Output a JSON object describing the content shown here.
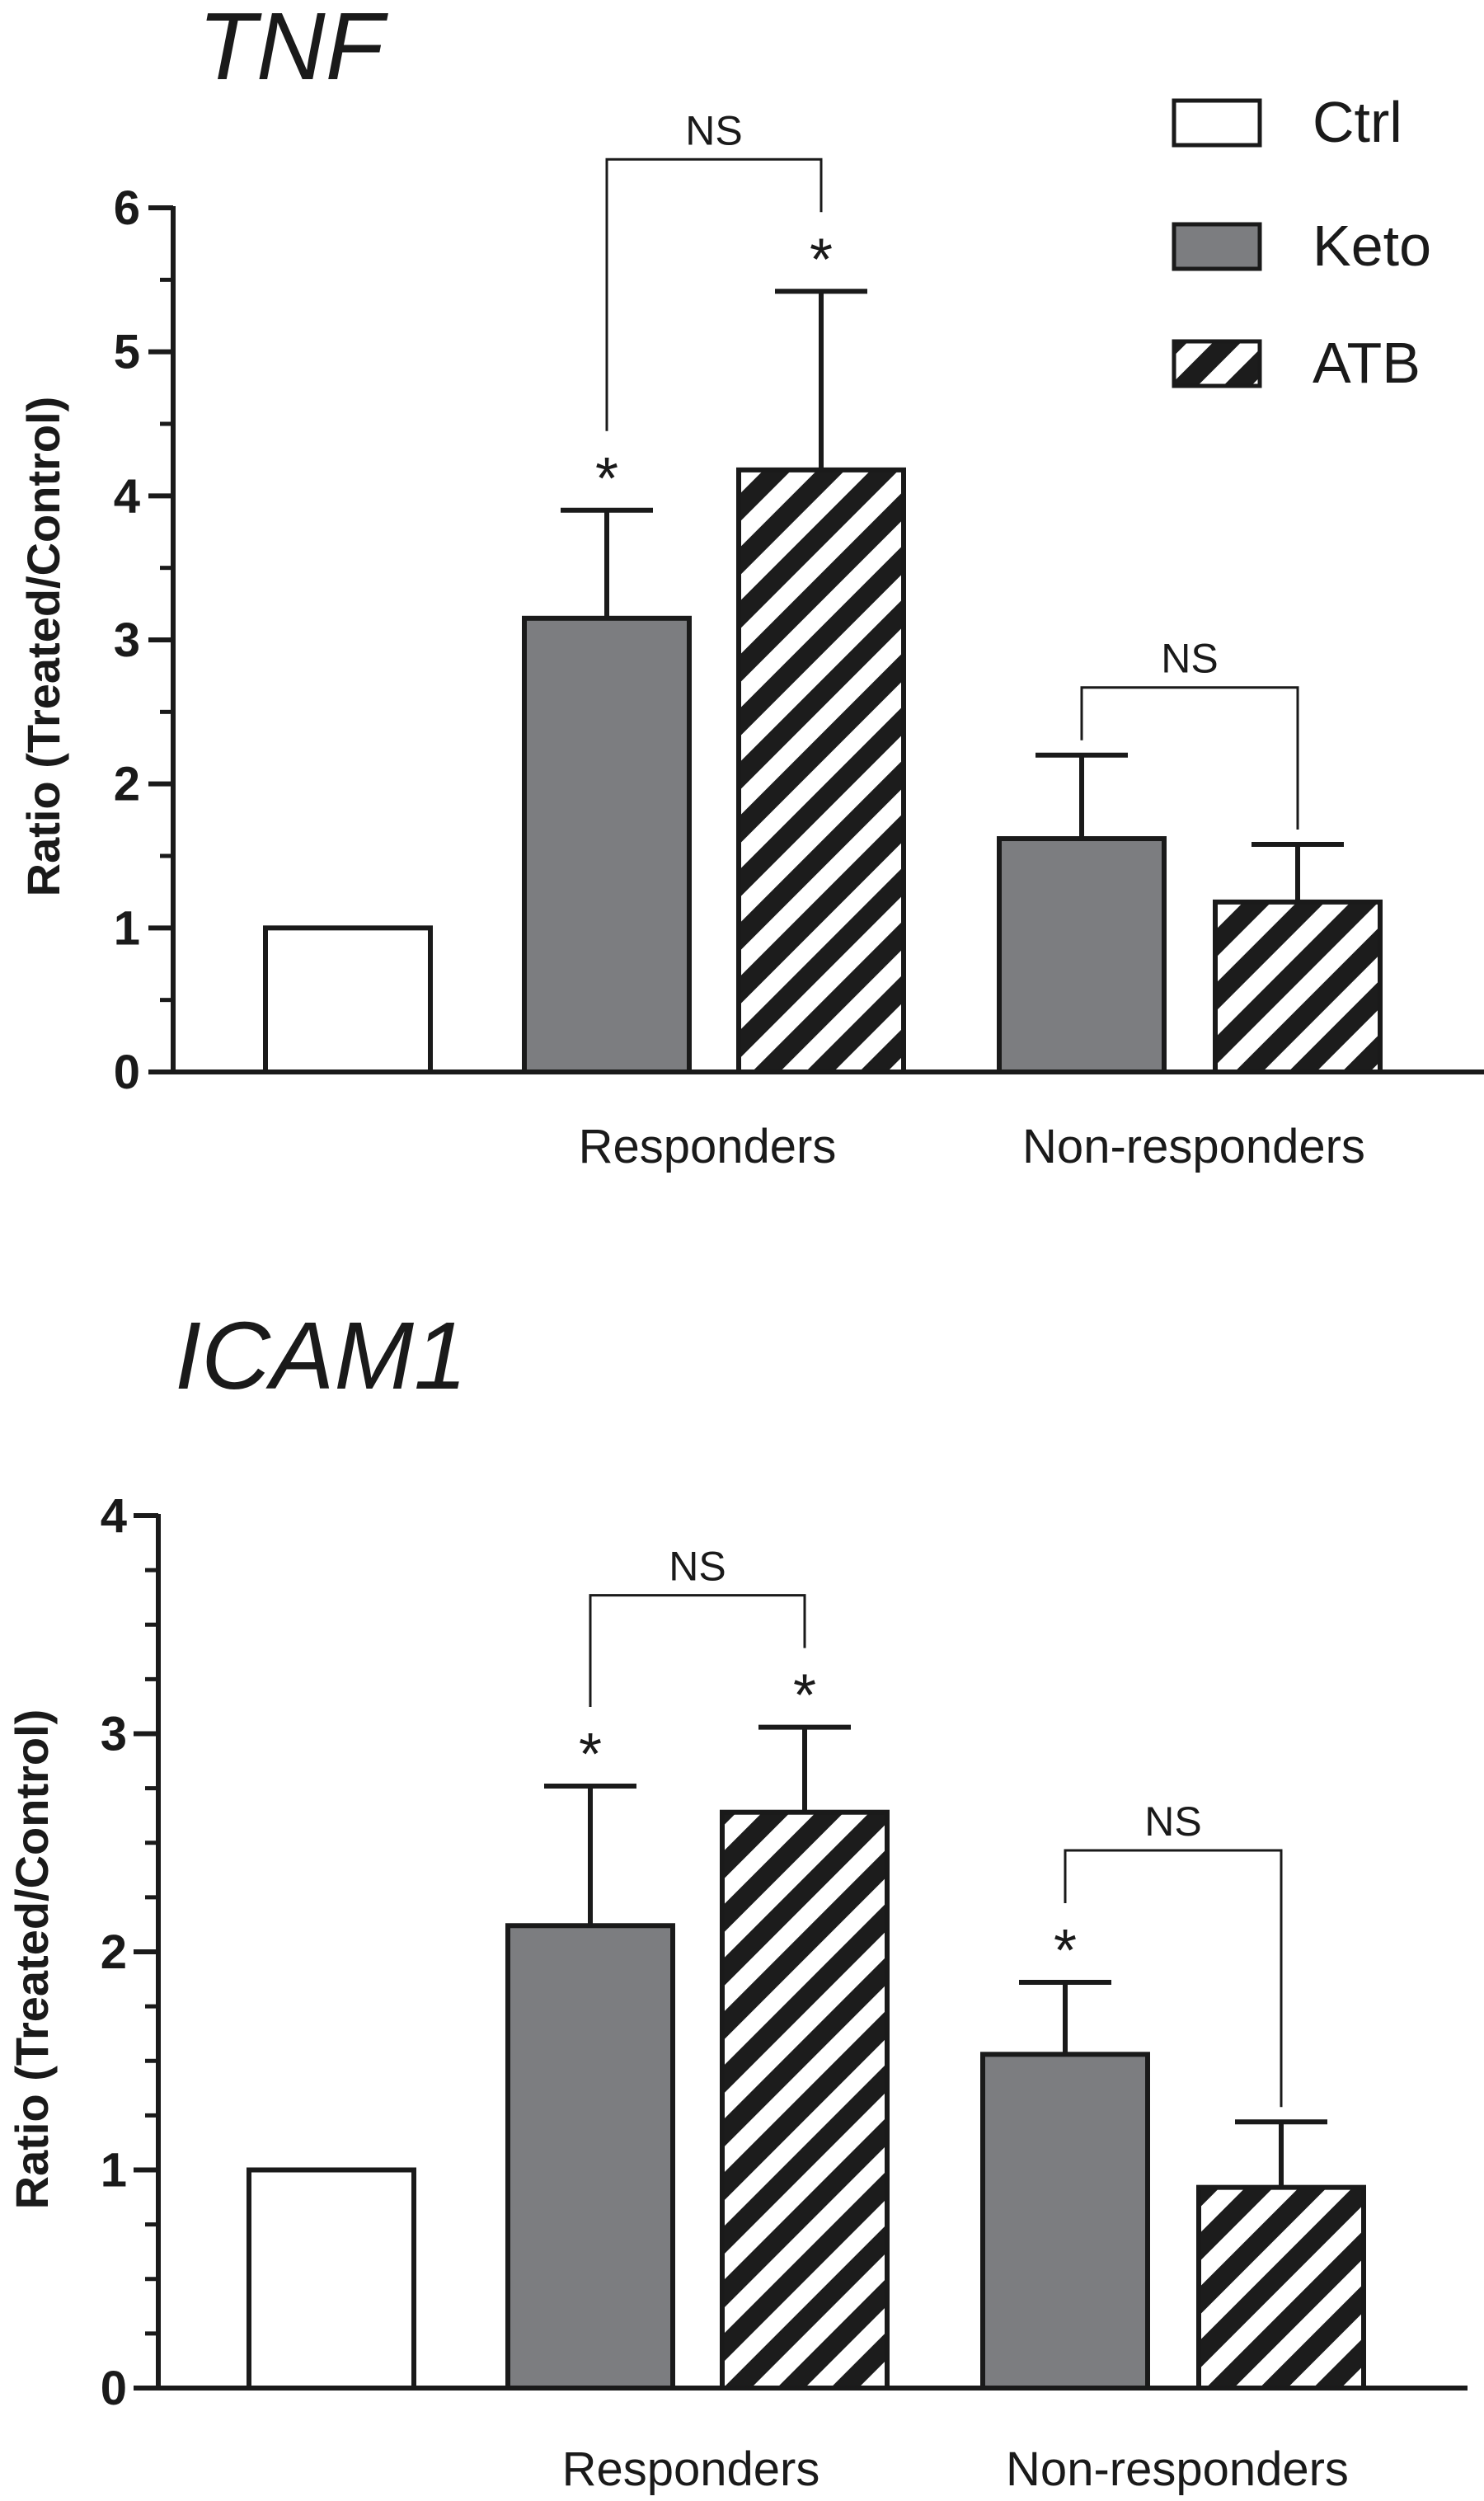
{
  "colors": {
    "ctrl_fill": "#ffffff",
    "keto_fill": "#7c7d80",
    "atb_stripe": "#1c1c1c",
    "axis": "#1a1a1a"
  },
  "legend": {
    "placement": "top-right",
    "items": [
      {
        "key": "ctrl",
        "label": "Ctrl"
      },
      {
        "key": "keto",
        "label": "Keto"
      },
      {
        "key": "atb",
        "label": "ATB"
      }
    ]
  },
  "chart_data": [
    {
      "type": "bar",
      "title": "TNF",
      "ylabel": "Ratio (Treated/Control)",
      "ylim": [
        0,
        6
      ],
      "yticks": [
        "0",
        "1",
        "2",
        "3",
        "4",
        "5",
        "6"
      ],
      "categories": [
        "",
        "Responders",
        "Non-responders"
      ],
      "bars": [
        {
          "group": "",
          "series": "ctrl",
          "value": 1.0,
          "error": 0,
          "star": ""
        },
        {
          "group": "Responders",
          "series": "keto",
          "value": 3.15,
          "error": 0.75,
          "star": "*"
        },
        {
          "group": "Responders",
          "series": "atb",
          "value": 4.18,
          "error": 1.24,
          "star": "*"
        },
        {
          "group": "Non-responders",
          "series": "keto",
          "value": 1.62,
          "error": 0.58,
          "star": ""
        },
        {
          "group": "Non-responders",
          "series": "atb",
          "value": 1.18,
          "error": 0.4,
          "star": ""
        }
      ],
      "comparisons": [
        {
          "from": 1,
          "to": 2,
          "label": "NS"
        },
        {
          "from": 3,
          "to": 4,
          "label": "NS"
        }
      ]
    },
    {
      "type": "bar",
      "title": "ICAM1",
      "ylabel": "Ratio (Treated/Control)",
      "ylim": [
        0,
        4
      ],
      "yticks": [
        "0",
        "1",
        "2",
        "3",
        "4"
      ],
      "categories": [
        "",
        "Responders",
        "Non-responders"
      ],
      "bars": [
        {
          "group": "",
          "series": "ctrl",
          "value": 1.0,
          "error": 0,
          "star": ""
        },
        {
          "group": "Responders",
          "series": "keto",
          "value": 2.12,
          "error": 0.64,
          "star": "*"
        },
        {
          "group": "Responders",
          "series": "atb",
          "value": 2.64,
          "error": 0.39,
          "star": "*"
        },
        {
          "group": "Non-responders",
          "series": "keto",
          "value": 1.53,
          "error": 0.33,
          "star": "*"
        },
        {
          "group": "Non-responders",
          "series": "atb",
          "value": 0.92,
          "error": 0.3,
          "star": ""
        }
      ],
      "comparisons": [
        {
          "from": 1,
          "to": 2,
          "label": "NS"
        },
        {
          "from": 3,
          "to": 4,
          "label": "NS"
        }
      ]
    }
  ]
}
